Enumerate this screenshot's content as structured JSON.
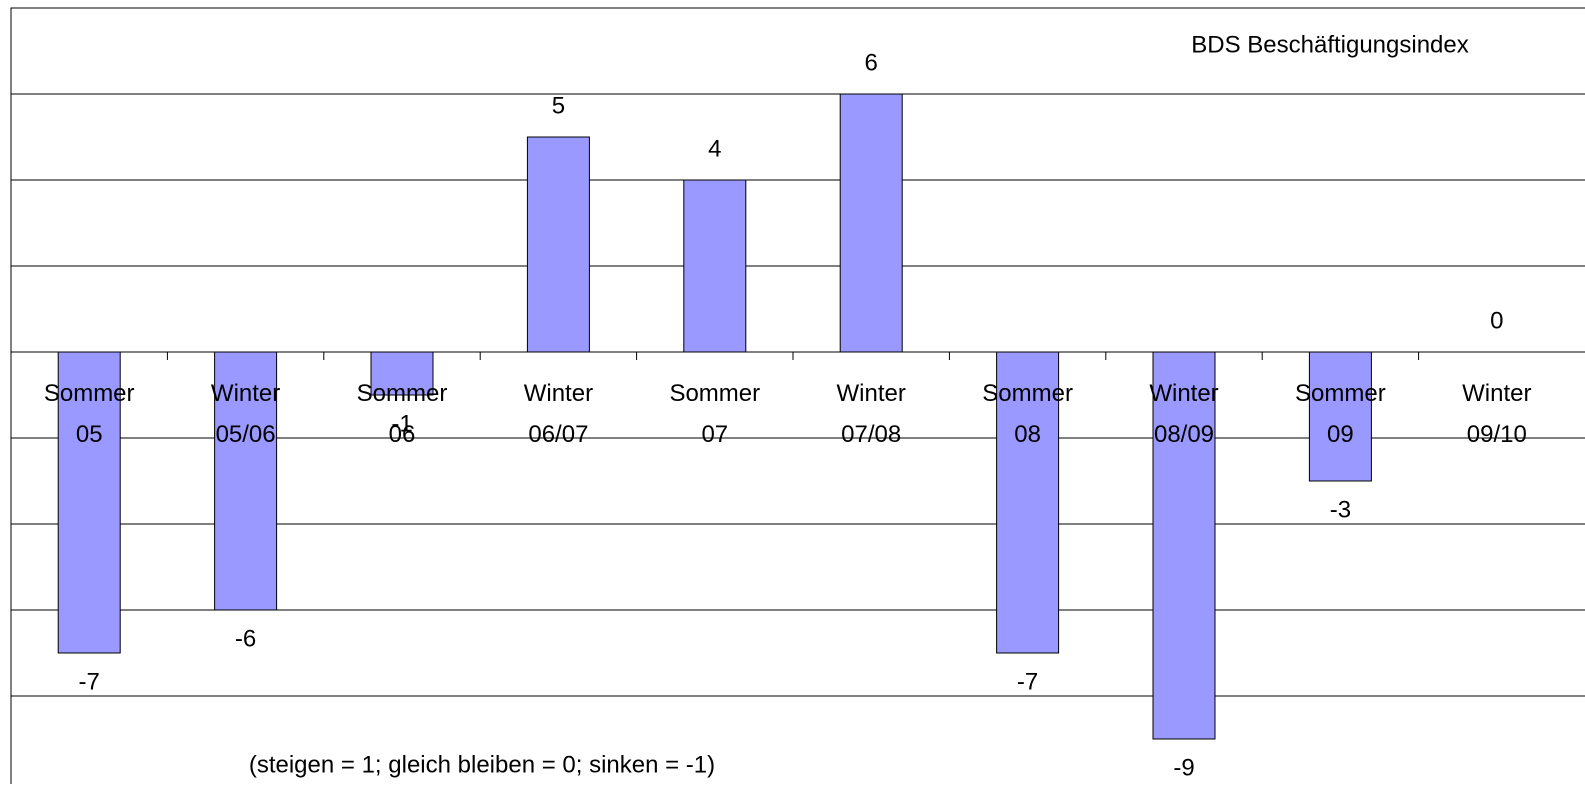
{
  "chart_data": {
    "type": "bar",
    "title": "BDS Beschäftigungsindex",
    "annotation": "(steigen = 1; gleich bleiben = 0; sinken = -1)",
    "categories": [
      "Sommer 05",
      "Winter 05/06",
      "Sommer 06",
      "Winter 06/07",
      "Sommer 07",
      "Winter 07/08",
      "Sommer 08",
      "Winter 08/09",
      "Sommer 09",
      "Winter 09/10"
    ],
    "values": [
      -7,
      -6,
      -1,
      5,
      4,
      6,
      -7,
      -9,
      -3,
      0
    ],
    "color": "#9999ff",
    "ylim": [
      -10,
      8
    ],
    "yticks": [
      -8,
      -6,
      -4,
      -2,
      0,
      2,
      4,
      6,
      8
    ],
    "grid": true
  }
}
